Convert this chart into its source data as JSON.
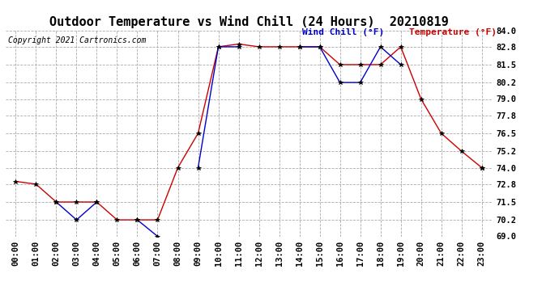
{
  "title": "Outdoor Temperature vs Wind Chill (24 Hours)  20210819",
  "copyright": "Copyright 2021 Cartronics.com",
  "legend_wind": "Wind Chill (°F)",
  "legend_temp": "Temperature (°F)",
  "x_labels": [
    "00:00",
    "01:00",
    "02:00",
    "03:00",
    "04:00",
    "05:00",
    "06:00",
    "07:00",
    "08:00",
    "09:00",
    "10:00",
    "11:00",
    "12:00",
    "13:00",
    "14:00",
    "15:00",
    "16:00",
    "17:00",
    "18:00",
    "19:00",
    "20:00",
    "21:00",
    "22:00",
    "23:00"
  ],
  "temperature": [
    73.0,
    72.8,
    71.5,
    71.5,
    71.5,
    70.2,
    70.2,
    70.2,
    74.0,
    76.5,
    82.8,
    83.0,
    82.8,
    82.8,
    82.8,
    82.8,
    81.5,
    81.5,
    81.5,
    82.8,
    79.0,
    76.5,
    75.2,
    74.0
  ],
  "wind_chill": [
    null,
    null,
    71.5,
    70.2,
    71.5,
    null,
    70.2,
    69.0,
    null,
    74.0,
    82.8,
    82.8,
    null,
    null,
    82.8,
    82.8,
    80.2,
    80.2,
    82.8,
    81.5,
    null,
    null,
    null,
    74.0
  ],
  "ylim": [
    69.0,
    84.0
  ],
  "yticks": [
    69.0,
    70.2,
    71.5,
    72.8,
    74.0,
    75.2,
    76.5,
    77.8,
    79.0,
    80.2,
    81.5,
    82.8,
    84.0
  ],
  "temp_color": "#cc0000",
  "wind_color": "#0000cc",
  "background_color": "#ffffff",
  "grid_color": "#aaaaaa",
  "title_fontsize": 11,
  "axis_fontsize": 7.5,
  "copyright_fontsize": 7,
  "legend_fontsize": 8
}
